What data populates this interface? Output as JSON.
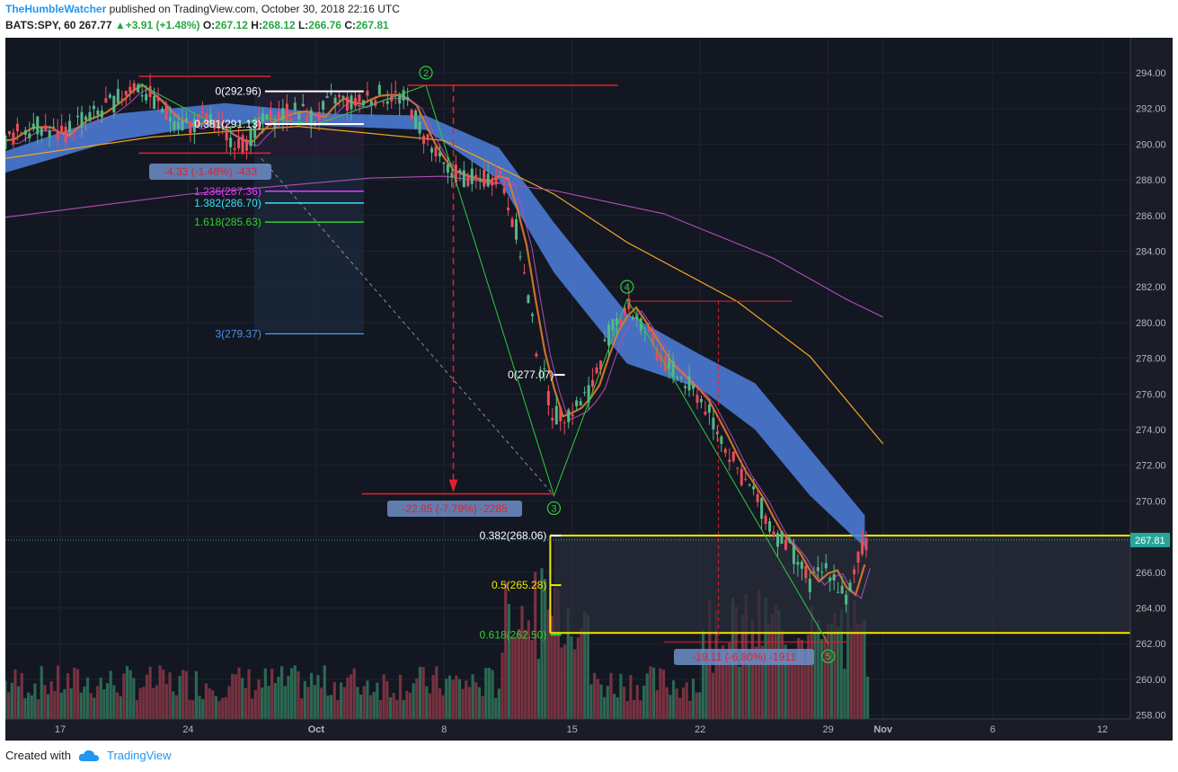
{
  "header": {
    "author": "TheHumbleWatcher",
    "published": "published on TradingView.com, October 30, 2018 22:16 UTC"
  },
  "symbol_bar": {
    "symbol": "BATS:SPY, 60",
    "last": "267.77",
    "change": "+3.91 (+1.48%)",
    "o_label": "O:",
    "o": "267.12",
    "h_label": "H:",
    "h": "268.12",
    "l_label": "L:",
    "l": "266.76",
    "c_label": "C:",
    "c": "267.81"
  },
  "footer": {
    "created_with": "Created with",
    "brand": "TradingView"
  },
  "colors": {
    "up": "#53b987",
    "down": "#eb4d5c",
    "ribbon": "#4f7fdc",
    "ma_orange": "#f5a623",
    "ma_purple": "#b04fb8",
    "zone_yellow": "#f2e600",
    "price_tag": "#26a69a"
  },
  "chart_data": {
    "type": "candlestick",
    "symbol": "BATS:SPY",
    "interval": "60",
    "ylim": [
      258,
      295
    ],
    "y_ticks": [
      "294.00",
      "292.00",
      "290.00",
      "288.00",
      "286.00",
      "284.00",
      "282.00",
      "280.00",
      "278.00",
      "276.00",
      "274.00",
      "272.00",
      "270.00",
      "268.00",
      "266.00",
      "264.00",
      "262.00",
      "260.00",
      "258.00"
    ],
    "x_ticks": [
      {
        "label": "17",
        "t": 17
      },
      {
        "label": "24",
        "t": 24
      },
      {
        "label": "Oct",
        "t": 31
      },
      {
        "label": "8",
        "t": 38
      },
      {
        "label": "15",
        "t": 45
      },
      {
        "label": "22",
        "t": 52
      },
      {
        "label": "29",
        "t": 59
      },
      {
        "label": "Nov",
        "t": 62
      },
      {
        "label": "6",
        "t": 68
      },
      {
        "label": "12",
        "t": 74
      }
    ],
    "t_range": [
      14,
      76
    ],
    "last_price_tag": "267.81",
    "last_price": 267.81,
    "price_path": [
      [
        14,
        290.2
      ],
      [
        15,
        290.9
      ],
      [
        16,
        291.0
      ],
      [
        17,
        290.4
      ],
      [
        18,
        291.3
      ],
      [
        19,
        291.7
      ],
      [
        20,
        292.4
      ],
      [
        21,
        293.4
      ],
      [
        22,
        292.6
      ],
      [
        23,
        291.5
      ],
      [
        24,
        291.0
      ],
      [
        25,
        291.4
      ],
      [
        26,
        290.6
      ],
      [
        27,
        290.0
      ],
      [
        28,
        291.1
      ],
      [
        29,
        291.6
      ],
      [
        30,
        291.9
      ],
      [
        31,
        291.4
      ],
      [
        32,
        292.6
      ],
      [
        33,
        292.2
      ],
      [
        34,
        292.7
      ],
      [
        35,
        292.8
      ],
      [
        36,
        292.4
      ],
      [
        37,
        290.2
      ],
      [
        38,
        288.6
      ],
      [
        39,
        288.2
      ],
      [
        40,
        287.9
      ],
      [
        41,
        288.4
      ],
      [
        42,
        285.0
      ],
      [
        43,
        278.8
      ],
      [
        44,
        274.7
      ],
      [
        45,
        275.1
      ],
      [
        46,
        276.2
      ],
      [
        47,
        279.3
      ],
      [
        48,
        281.0
      ],
      [
        49,
        279.5
      ],
      [
        50,
        277.8
      ],
      [
        51,
        276.8
      ],
      [
        52,
        275.8
      ],
      [
        53,
        273.9
      ],
      [
        54,
        271.8
      ],
      [
        55,
        270.3
      ],
      [
        56,
        268.3
      ],
      [
        57,
        267.2
      ],
      [
        58,
        265.4
      ],
      [
        59,
        266.3
      ],
      [
        60,
        264.4
      ],
      [
        61,
        267.8
      ]
    ],
    "ribbon_upper": [
      [
        14,
        289.6
      ],
      [
        20,
        291.7
      ],
      [
        26,
        292.3
      ],
      [
        32,
        291.7
      ],
      [
        37,
        291.6
      ],
      [
        41,
        289.8
      ],
      [
        44,
        285.6
      ],
      [
        48,
        280.5
      ],
      [
        52,
        278.2
      ],
      [
        55,
        276.6
      ],
      [
        58,
        272.9
      ],
      [
        61,
        269.2
      ]
    ],
    "ribbon_lower": [
      [
        14,
        288.4
      ],
      [
        20,
        290.2
      ],
      [
        26,
        291.2
      ],
      [
        32,
        291.0
      ],
      [
        37,
        290.8
      ],
      [
        41,
        288.0
      ],
      [
        44,
        282.8
      ],
      [
        48,
        277.7
      ],
      [
        52,
        276.3
      ],
      [
        55,
        274.0
      ],
      [
        58,
        270.3
      ],
      [
        61,
        267.4
      ]
    ],
    "ma_long": [
      [
        14,
        289.2
      ],
      [
        22,
        290.4
      ],
      [
        30,
        291.0
      ],
      [
        38,
        290.2
      ],
      [
        44,
        287.2
      ],
      [
        48,
        284.5
      ],
      [
        54,
        281.2
      ],
      [
        58,
        278.1
      ],
      [
        62,
        273.2
      ]
    ],
    "ma_200": [
      [
        14,
        285.9
      ],
      [
        24,
        287.2
      ],
      [
        34,
        288.1
      ],
      [
        38,
        288.2
      ],
      [
        44,
        287.4
      ],
      [
        50,
        286.1
      ],
      [
        56,
        283.6
      ],
      [
        60,
        281.3
      ],
      [
        62,
        280.3
      ]
    ],
    "elliott_waves": [
      {
        "label": "2",
        "t": 37,
        "p": 293.3
      },
      {
        "label": "3",
        "t": 44,
        "p": 270.3
      },
      {
        "label": "4",
        "t": 48,
        "p": 281.3
      },
      {
        "label": "5",
        "t": 59,
        "p": 262.0
      }
    ],
    "fib_extension_levels": [
      {
        "label": "0(292.96)",
        "value": 292.96,
        "color": "#ffffff"
      },
      {
        "label": "0.381(291.13)",
        "value": 291.13,
        "color": "#ffffff"
      },
      {
        "label": "1.236(287.36)",
        "value": 287.36,
        "color": "#e040fb"
      },
      {
        "label": "1.382(286.70)",
        "value": 286.7,
        "color": "#40e0f0"
      },
      {
        "label": "1.618(285.63)",
        "value": 285.63,
        "color": "#30d030"
      },
      {
        "label": "3(279.37)",
        "value": 279.37,
        "color": "#4a90e2"
      }
    ],
    "fib_wave4_level": {
      "label": "0(277.07)",
      "value": 277.07
    },
    "fib_retracements": [
      {
        "label": "0.382(268.06)",
        "value": 268.06,
        "color": "#ffffff"
      },
      {
        "label": "0.5(265.28)",
        "value": 265.28,
        "color": "#f2e600"
      },
      {
        "label": "0.618(262.50)",
        "value": 262.5,
        "color": "#30d030"
      }
    ],
    "measurements": [
      {
        "label": "-4.33 (-1.48%) -433"
      },
      {
        "label": "-22.85 (-7.79%) -2285"
      },
      {
        "label": "-19.11 (-6.80%) -1911"
      }
    ],
    "support_zone": {
      "top": 268.06,
      "bottom": 262.6
    },
    "volume": "volume histogram, green = up bar, red = down bar"
  }
}
